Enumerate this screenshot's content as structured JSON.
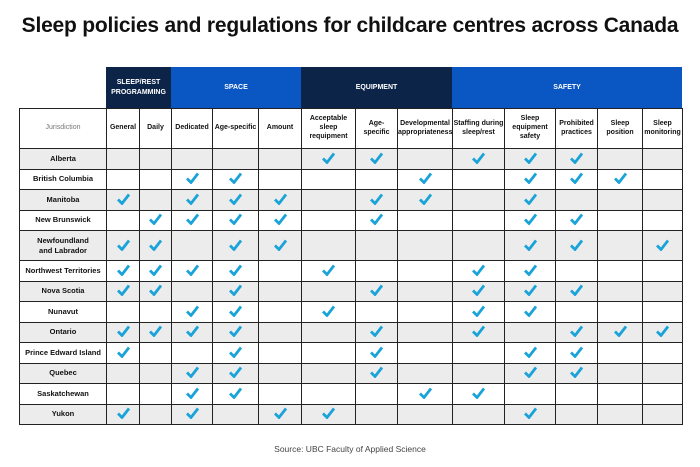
{
  "title": "Sleep policies and regulations for childcare centres across Canada",
  "colors": {
    "navy": "#0c2447",
    "blue": "#0a56c2",
    "check": "#1aa3d9",
    "row_grey": "#ececec"
  },
  "groups": [
    {
      "label": "SLEEP/REST PROGRAMMING",
      "span": 2,
      "color": "navy"
    },
    {
      "label": "SPACE",
      "span": 3,
      "color": "blue"
    },
    {
      "label": "EQUIPMENT",
      "span": 3,
      "color": "navy"
    },
    {
      "label": "SAFETY",
      "span": 5,
      "color": "blue"
    }
  ],
  "jurisdiction_header": "Jurisdiction",
  "columns": [
    "General",
    "Daily",
    "Dedicated",
    "Age-specific",
    "Amount",
    "Acceptable sleep requipment",
    "Age-specific",
    "Developmental appropriateness",
    "Staffing during sleep/rest",
    "Sleep equipment safety",
    "Prohibited practices",
    "Sleep position",
    "Sleep monitoring"
  ],
  "check_icon": "checkmark-icon",
  "rows": [
    {
      "name": "Alberta",
      "checks": [
        5,
        6,
        8,
        9,
        10
      ]
    },
    {
      "name": "British Columbia",
      "checks": [
        2,
        3,
        7,
        9,
        10,
        11
      ]
    },
    {
      "name": "Manitoba",
      "checks": [
        0,
        2,
        3,
        4,
        6,
        7,
        9
      ]
    },
    {
      "name": "New Brunswick",
      "checks": [
        1,
        2,
        3,
        4,
        6,
        9,
        10
      ]
    },
    {
      "name": "Newfoundland and Labrador",
      "checks": [
        0,
        1,
        3,
        4,
        9,
        10,
        12
      ]
    },
    {
      "name": "Northwest Territories",
      "checks": [
        0,
        1,
        2,
        3,
        5,
        8,
        9
      ]
    },
    {
      "name": "Nova Scotia",
      "checks": [
        0,
        1,
        3,
        6,
        8,
        9,
        10
      ]
    },
    {
      "name": "Nunavut",
      "checks": [
        2,
        3,
        5,
        8,
        9
      ]
    },
    {
      "name": "Ontario",
      "checks": [
        0,
        1,
        2,
        3,
        6,
        8,
        10,
        11,
        12
      ]
    },
    {
      "name": "Prince Edward Island",
      "checks": [
        0,
        3,
        6,
        9,
        10
      ]
    },
    {
      "name": "Quebec",
      "checks": [
        2,
        3,
        6,
        9,
        10
      ]
    },
    {
      "name": "Saskatchewan",
      "checks": [
        2,
        3,
        7,
        8
      ]
    },
    {
      "name": "Yukon",
      "checks": [
        0,
        2,
        4,
        5,
        9
      ]
    }
  ],
  "source": "Source: UBC Faculty of Applied Science"
}
